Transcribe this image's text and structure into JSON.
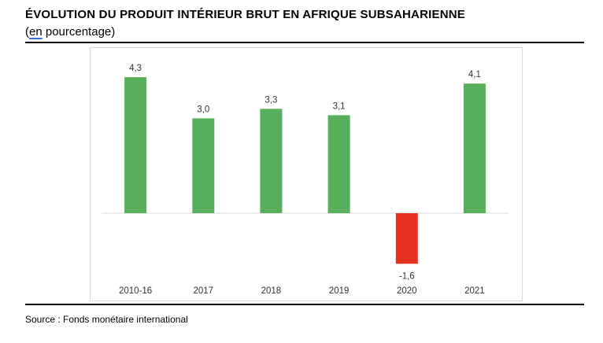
{
  "header": {
    "title": "ÉVOLUTION DU PRODUIT INTÉRIEUR BRUT EN AFRIQUE SUBSAHARIENNE",
    "subtitle_prefix": "(",
    "subtitle_underlined": "en",
    "subtitle_suffix": " pourcentage)"
  },
  "footer": {
    "source": "Source : Fonds monétaire international"
  },
  "colors": {
    "positive": "#57AE5B",
    "negative": "#E3301F",
    "axis": "#d9d9d9"
  },
  "chart_data": {
    "type": "bar",
    "title": "ÉVOLUTION DU PRODUIT INTÉRIEUR BRUT EN AFRIQUE SUBSAHARIENNE",
    "subtitle": "(en pourcentage)",
    "categories": [
      "2010-16",
      "2017",
      "2018",
      "2019",
      "2020",
      "2021"
    ],
    "values": [
      4.3,
      3.0,
      3.3,
      3.1,
      -1.6,
      4.1
    ],
    "data_labels": [
      "4,3",
      "3,0",
      "3,3",
      "3,1",
      "-1,6",
      "4,1"
    ],
    "xlabel": "",
    "ylabel": "",
    "ylim": [
      -1.6,
      4.3
    ],
    "grid": false,
    "legend": "none"
  }
}
